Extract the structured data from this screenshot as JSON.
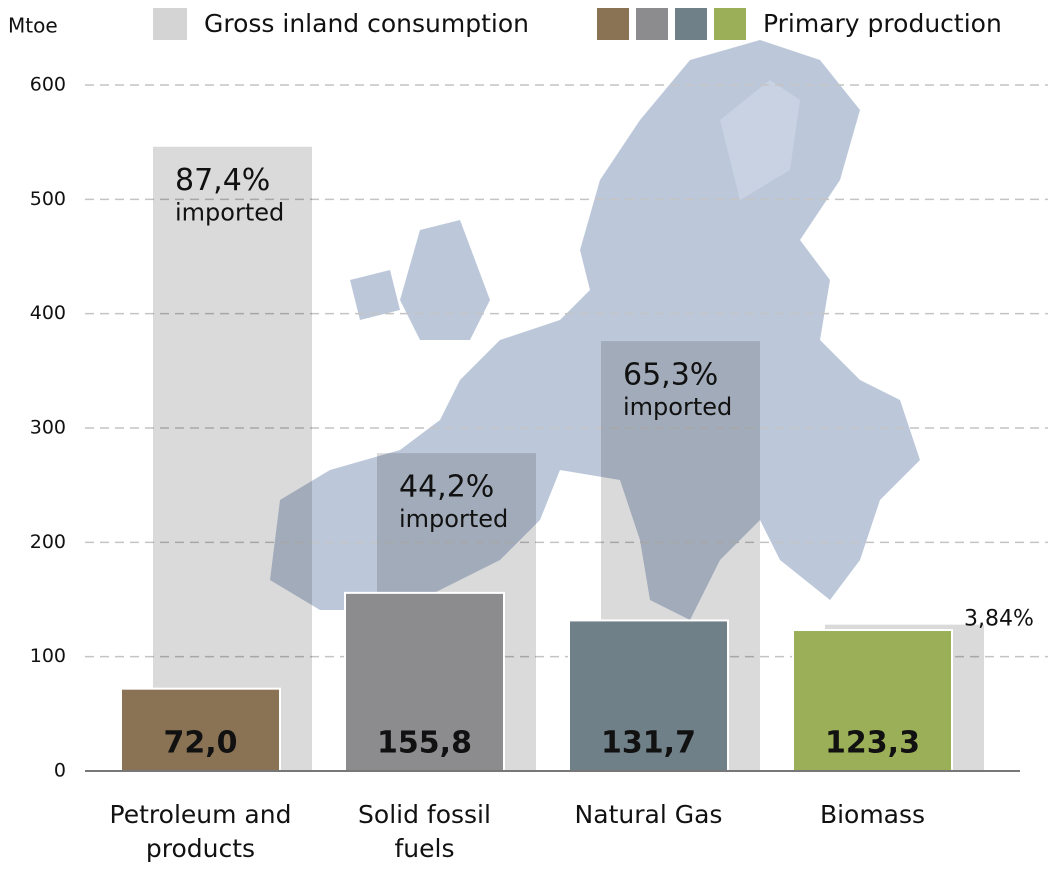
{
  "chart_data": {
    "type": "bar",
    "y_label": "Mtoe",
    "categories": [
      "Petroleum and products",
      "Solid fossil fuels",
      "Natural Gas",
      "Biomass"
    ],
    "series": [
      {
        "name": "Gross inland consumption",
        "color": "#d4d4d4",
        "values": [
          546,
          278,
          376,
          128
        ]
      },
      {
        "name": "Primary production",
        "colors": [
          "#8a7355",
          "#8c8c8e",
          "#6f8089",
          "#9aaf57"
        ],
        "values": [
          72.0,
          155.8,
          131.7,
          123.3
        ],
        "value_labels": [
          "72,0",
          "155,8",
          "131,7",
          "123,3"
        ]
      }
    ],
    "import_shares": [
      "87,4%",
      "44,2%",
      "65,3%",
      "3,84%"
    ],
    "import_note": "imported",
    "ylim": [
      0,
      600
    ],
    "yticks": [
      0,
      100,
      200,
      300,
      400,
      500,
      600
    ],
    "grid": true
  }
}
